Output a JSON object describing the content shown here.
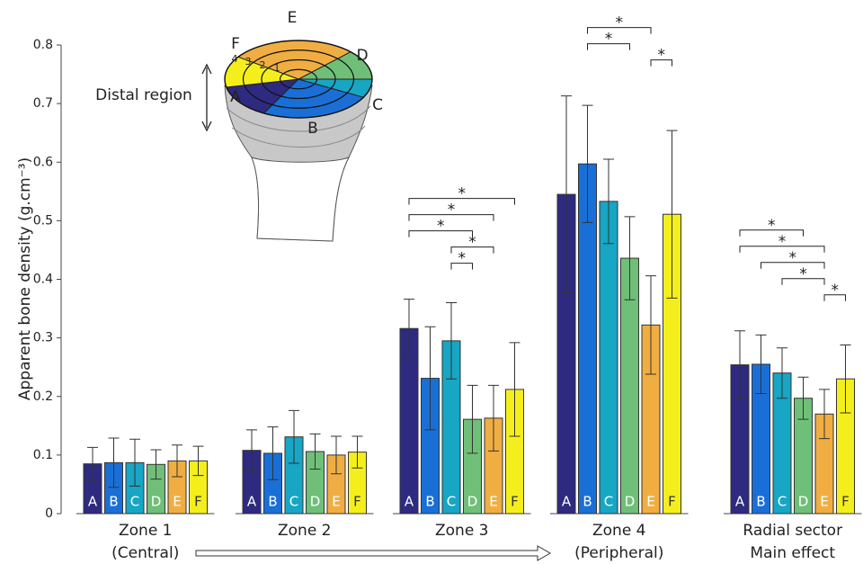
{
  "chart_data": {
    "type": "bar",
    "ylabel": "Apparent bone density (g.cm⁻³)",
    "ylim": [
      0,
      0.8
    ],
    "yticks": [
      0,
      0.1,
      0.2,
      0.3,
      0.4,
      0.5,
      0.6,
      0.7,
      0.8
    ],
    "bar_labels": [
      "A",
      "B",
      "C",
      "D",
      "E",
      "F"
    ],
    "colors": [
      "#2e2a80",
      "#1a6fd6",
      "#17a6c4",
      "#6fbf78",
      "#f0ae42",
      "#f4ef1c"
    ],
    "groups": [
      {
        "label": [
          "Zone 1",
          "(Central)"
        ],
        "values": [
          0.085,
          0.087,
          0.087,
          0.084,
          0.09,
          0.09
        ],
        "errors": [
          0.028,
          0.042,
          0.04,
          0.025,
          0.027,
          0.025
        ],
        "significance": []
      },
      {
        "label": [
          "Zone 2"
        ],
        "values": [
          0.108,
          0.103,
          0.131,
          0.106,
          0.1,
          0.105
        ],
        "errors": [
          0.035,
          0.045,
          0.045,
          0.03,
          0.032,
          0.027
        ],
        "significance": []
      },
      {
        "label": [
          "Zone 3"
        ],
        "values": [
          0.316,
          0.231,
          0.295,
          0.161,
          0.163,
          0.212
        ],
        "errors": [
          0.05,
          0.088,
          0.065,
          0.058,
          0.056,
          0.08
        ],
        "significance": [
          {
            "between": [
              "A",
              "F"
            ],
            "label": "*"
          },
          {
            "between": [
              "A",
              "E"
            ],
            "label": "*"
          },
          {
            "between": [
              "A",
              "D"
            ],
            "label": "*"
          },
          {
            "between": [
              "C",
              "E"
            ],
            "label": "*"
          },
          {
            "between": [
              "C",
              "D"
            ],
            "label": "*"
          }
        ]
      },
      {
        "label": [
          "Zone 4",
          "(Peripheral)"
        ],
        "values": [
          0.545,
          0.597,
          0.533,
          0.436,
          0.322,
          0.511
        ],
        "errors": [
          0.168,
          0.1,
          0.072,
          0.071,
          0.084,
          0.143
        ],
        "significance": [
          {
            "between": [
              "B",
              "E"
            ],
            "label": "*"
          },
          {
            "between": [
              "B",
              "D"
            ],
            "label": "*"
          },
          {
            "between": [
              "E",
              "F"
            ],
            "label": "*"
          }
        ]
      },
      {
        "label": [
          "Radial sector",
          "Main effect"
        ],
        "values": [
          0.254,
          0.255,
          0.24,
          0.197,
          0.17,
          0.23
        ],
        "errors": [
          0.058,
          0.05,
          0.043,
          0.036,
          0.042,
          0.058
        ],
        "significance": [
          {
            "between": [
              "A",
              "D"
            ],
            "label": "*"
          },
          {
            "between": [
              "A",
              "E"
            ],
            "label": "*"
          },
          {
            "between": [
              "B",
              "E"
            ],
            "label": "*"
          },
          {
            "between": [
              "C",
              "E"
            ],
            "label": "*"
          },
          {
            "between": [
              "E",
              "F"
            ],
            "label": "*"
          }
        ]
      }
    ],
    "inset": {
      "label": "Distal region",
      "sectors": [
        "A",
        "B",
        "C",
        "D",
        "E",
        "F"
      ],
      "rings": [
        "1",
        "2",
        "3",
        "4"
      ]
    }
  }
}
